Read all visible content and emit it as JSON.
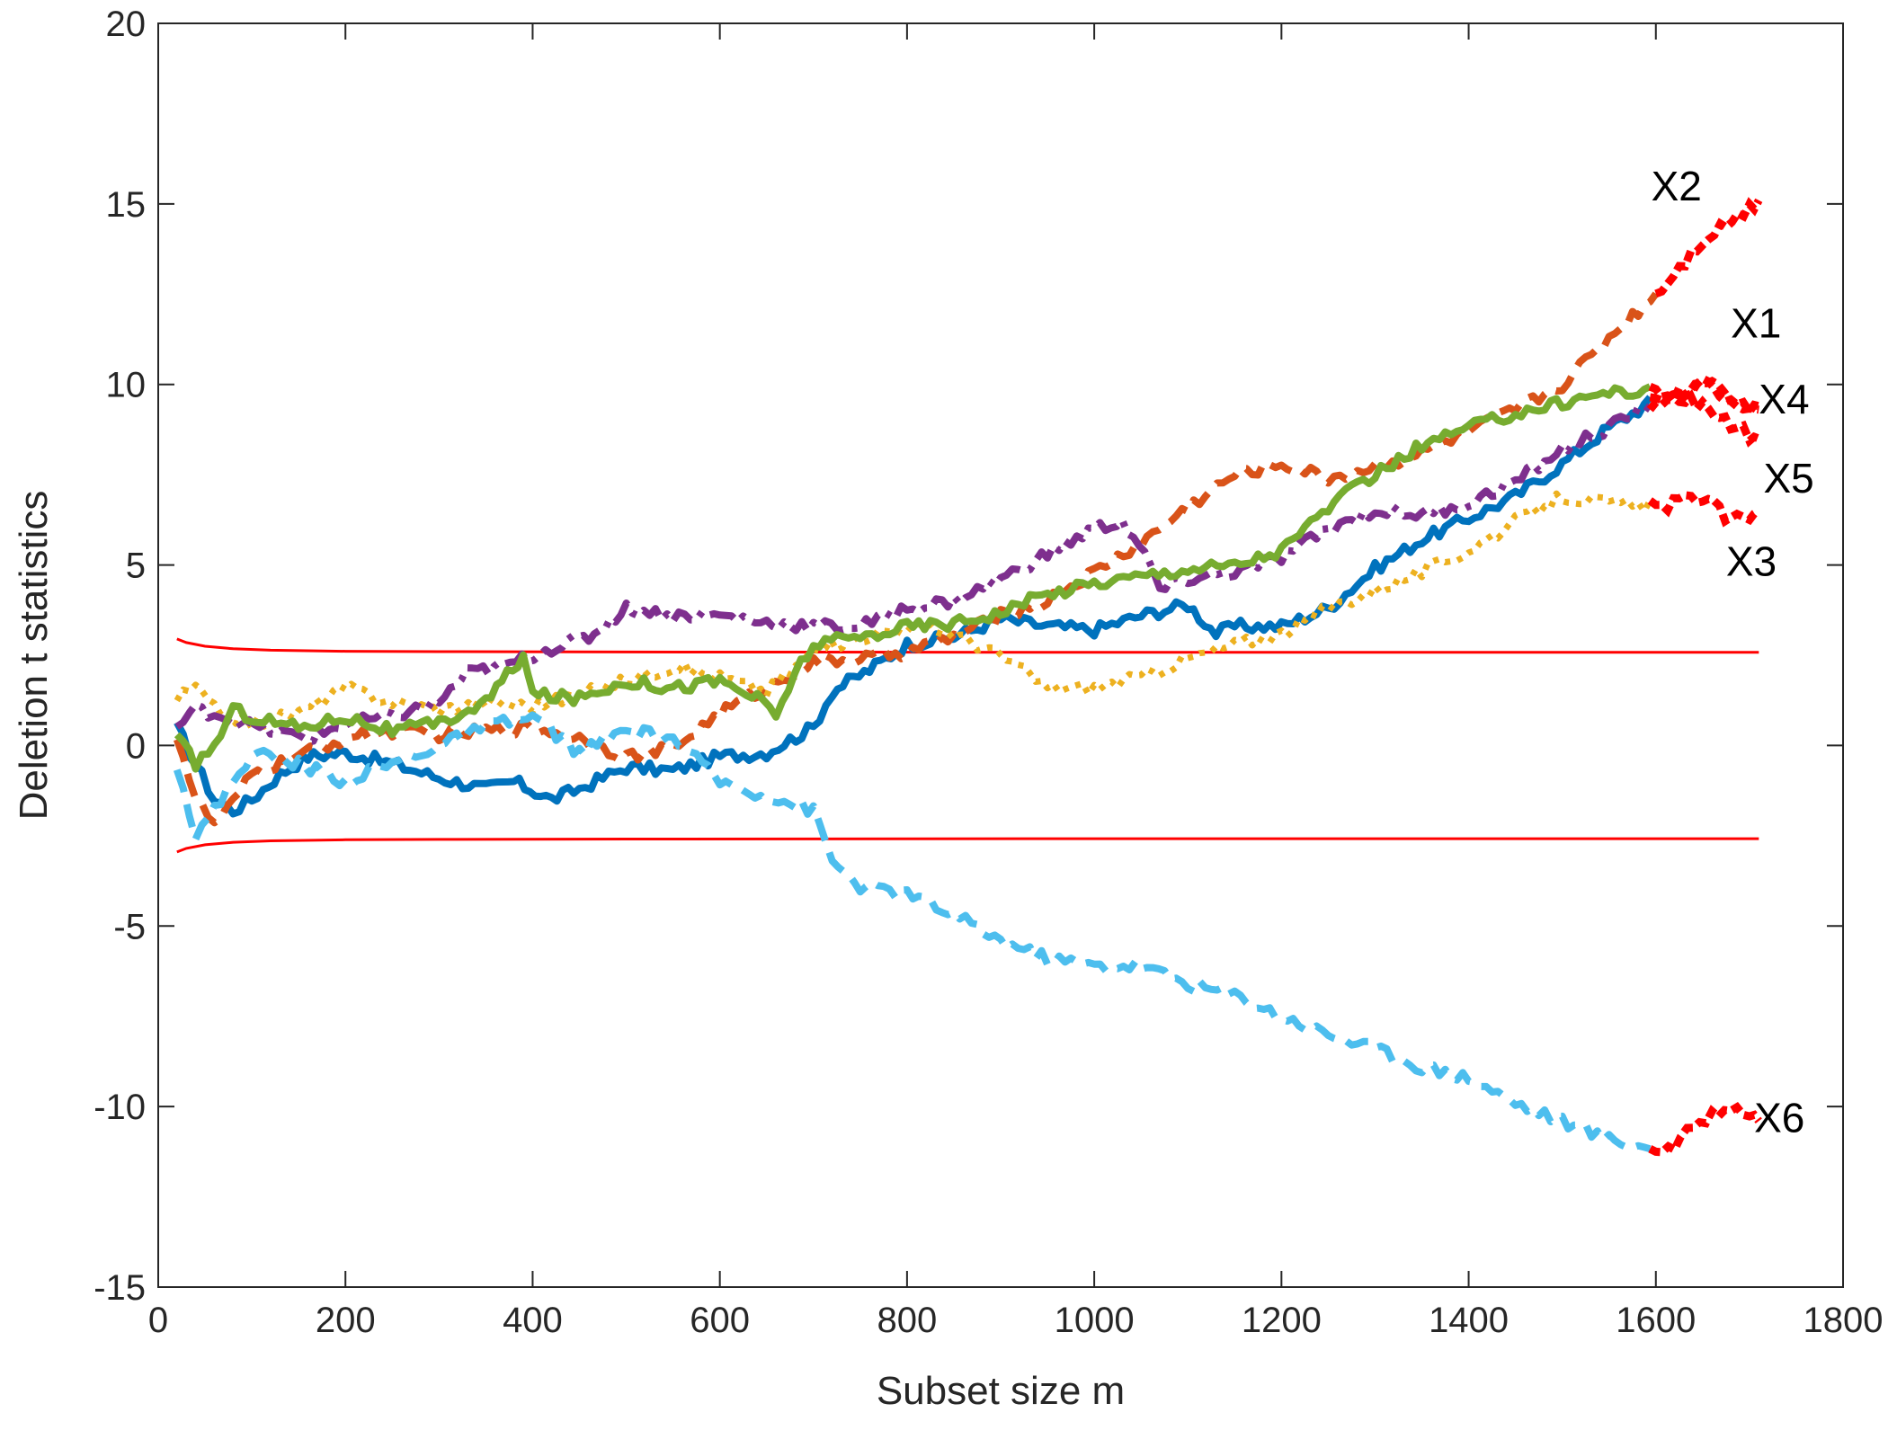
{
  "chart_data": {
    "type": "line",
    "xlabel": "Subset size m",
    "ylabel": "Deletion t statistics",
    "xlim": [
      0,
      1800
    ],
    "ylim": [
      -15,
      20
    ],
    "xticks": [
      0,
      200,
      400,
      600,
      800,
      1000,
      1200,
      1400,
      1600,
      1800
    ],
    "yticks": [
      -15,
      -10,
      -5,
      0,
      5,
      10,
      15,
      20
    ],
    "xtick_labels": [
      "0",
      "200",
      "400",
      "600",
      "800",
      "1000",
      "1200",
      "1400",
      "1600",
      "1800"
    ],
    "ytick_labels": [
      "-15",
      "-10",
      "-5",
      "0",
      "5",
      "10",
      "15",
      "20"
    ],
    "grid": false,
    "box": true,
    "highlight_color": "#ff0000",
    "series": [
      {
        "name": "X1",
        "color": "#0072bd",
        "style": "solid",
        "x": [
          20,
          40,
          60,
          80,
          100,
          130,
          160,
          200,
          250,
          300,
          350,
          380,
          420,
          450,
          500,
          550,
          600,
          650,
          700,
          720,
          760,
          800,
          850,
          900,
          950,
          1000,
          1050,
          1100,
          1130,
          1150,
          1200,
          1250,
          1300,
          1350,
          1400,
          1450,
          1500,
          1550,
          1600,
          1630,
          1660,
          1680,
          1700,
          1710
        ],
        "y": [
          0.5,
          -0.5,
          -1.5,
          -1.8,
          -1.5,
          -0.8,
          -0.3,
          -0.2,
          -0.5,
          -0.9,
          -1.2,
          -1.0,
          -1.5,
          -1.2,
          -0.6,
          -0.7,
          -0.3,
          -0.2,
          0.5,
          1.5,
          2.1,
          2.8,
          3.0,
          3.5,
          3.3,
          3.2,
          3.6,
          3.9,
          3.1,
          3.3,
          3.3,
          3.8,
          4.9,
          5.7,
          6.3,
          6.9,
          7.8,
          8.8,
          9.6,
          9.8,
          10.1,
          9.7,
          9.2,
          9.3
        ]
      },
      {
        "name": "X2",
        "color": "#d95319",
        "style": "dashed",
        "x": [
          20,
          40,
          60,
          80,
          100,
          150,
          200,
          250,
          300,
          350,
          400,
          450,
          500,
          550,
          600,
          650,
          700,
          750,
          800,
          850,
          900,
          950,
          1000,
          1050,
          1100,
          1150,
          1200,
          1250,
          1300,
          1350,
          1400,
          1450,
          1500,
          1550,
          1600,
          1650,
          1700,
          1710
        ],
        "y": [
          0.3,
          -1.5,
          -2.2,
          -1.6,
          -0.8,
          -0.3,
          0.2,
          0.4,
          0.3,
          0.4,
          0.5,
          0.2,
          -0.3,
          -0.1,
          0.9,
          1.6,
          2.3,
          2.4,
          2.6,
          3.0,
          3.6,
          4.0,
          4.8,
          5.6,
          6.6,
          7.5,
          7.8,
          7.4,
          7.7,
          8.1,
          8.7,
          9.3,
          10.0,
          11.3,
          12.5,
          14.0,
          14.9,
          15.1
        ]
      },
      {
        "name": "X3",
        "color": "#edb120",
        "style": "dotted",
        "x": [
          20,
          40,
          60,
          100,
          150,
          200,
          250,
          300,
          350,
          400,
          450,
          500,
          550,
          600,
          650,
          700,
          750,
          800,
          850,
          900,
          950,
          1000,
          1050,
          1100,
          1150,
          1200,
          1250,
          1300,
          1350,
          1400,
          1450,
          1500,
          1550,
          1600,
          1650,
          1680,
          1700,
          1710
        ],
        "y": [
          1.3,
          1.6,
          1.0,
          0.6,
          0.9,
          1.6,
          1.2,
          1.0,
          1.2,
          1.1,
          1.4,
          1.8,
          2.2,
          1.9,
          1.5,
          2.6,
          3.0,
          3.3,
          3.1,
          2.5,
          1.6,
          1.6,
          1.9,
          2.4,
          2.8,
          3.1,
          3.8,
          4.3,
          4.8,
          5.4,
          6.2,
          6.9,
          6.7,
          6.6,
          6.9,
          6.2,
          6.4,
          6.5
        ]
      },
      {
        "name": "X4",
        "color": "#7e2f8e",
        "style": "dashdot",
        "x": [
          20,
          40,
          60,
          80,
          120,
          160,
          200,
          250,
          300,
          330,
          370,
          420,
          460,
          500,
          550,
          600,
          650,
          700,
          750,
          800,
          850,
          900,
          950,
          1000,
          1030,
          1060,
          1070,
          1100,
          1150,
          1200,
          1250,
          1300,
          1350,
          1400,
          1450,
          1500,
          1550,
          1600,
          1650,
          1680,
          1700,
          1710
        ],
        "y": [
          0.5,
          1.0,
          0.9,
          0.7,
          0.4,
          0.2,
          0.6,
          0.8,
          1.2,
          2.0,
          2.2,
          2.7,
          3.0,
          3.8,
          3.6,
          3.6,
          3.4,
          3.3,
          3.3,
          3.8,
          4.0,
          4.6,
          5.3,
          6.0,
          6.2,
          5.0,
          4.3,
          4.6,
          4.8,
          5.2,
          6.0,
          6.5,
          6.4,
          6.7,
          7.3,
          8.2,
          8.8,
          9.5,
          10.0,
          9.6,
          9.3,
          9.4
        ]
      },
      {
        "name": "X5",
        "color": "#77ac30",
        "style": "solid",
        "x": [
          20,
          40,
          60,
          80,
          100,
          150,
          200,
          250,
          300,
          350,
          390,
          400,
          450,
          500,
          550,
          600,
          640,
          660,
          680,
          700,
          750,
          800,
          850,
          900,
          950,
          1000,
          1050,
          1100,
          1150,
          1200,
          1250,
          1300,
          1350,
          1400,
          1450,
          1500,
          1550,
          1600,
          1650,
          1680,
          1700,
          1710
        ],
        "y": [
          0.2,
          -0.5,
          0.0,
          1.0,
          0.8,
          0.5,
          0.8,
          0.4,
          0.6,
          1.2,
          2.5,
          1.4,
          1.3,
          1.8,
          1.6,
          1.8,
          1.3,
          0.8,
          2.0,
          2.8,
          3.0,
          3.3,
          3.4,
          3.7,
          4.2,
          4.5,
          4.7,
          4.9,
          5.0,
          5.4,
          6.6,
          7.5,
          8.3,
          8.8,
          9.2,
          9.5,
          9.8,
          9.8,
          9.4,
          8.9,
          8.6,
          8.5
        ]
      },
      {
        "name": "X6",
        "color": "#4dbeee",
        "style": "dashed",
        "x": [
          20,
          40,
          60,
          80,
          100,
          150,
          200,
          250,
          300,
          350,
          400,
          450,
          500,
          550,
          600,
          650,
          700,
          720,
          750,
          800,
          850,
          900,
          950,
          1000,
          1050,
          1100,
          1150,
          1200,
          1250,
          1300,
          1350,
          1400,
          1450,
          1500,
          1550,
          1600,
          1620,
          1640,
          1660,
          1680,
          1700,
          1710
        ],
        "y": [
          -0.5,
          -2.5,
          -1.8,
          -1.0,
          -0.2,
          -0.5,
          -1.0,
          -0.5,
          0.0,
          0.5,
          0.8,
          -0.2,
          0.4,
          0.2,
          -1.0,
          -1.4,
          -1.8,
          -3.2,
          -3.9,
          -4.1,
          -4.7,
          -5.4,
          -5.9,
          -6.1,
          -6.1,
          -6.6,
          -6.9,
          -7.5,
          -8.0,
          -8.4,
          -8.9,
          -9.2,
          -9.9,
          -10.4,
          -10.9,
          -11.2,
          -11.1,
          -10.6,
          -10.2,
          -10.0,
          -10.2,
          -10.4
        ]
      }
    ],
    "envelopes": [
      {
        "color": "#ff0000",
        "x": [
          20,
          30,
          50,
          80,
          120,
          200,
          300,
          500,
          1000,
          1710
        ],
        "y": [
          2.95,
          2.85,
          2.75,
          2.68,
          2.64,
          2.61,
          2.6,
          2.59,
          2.58,
          2.58
        ]
      },
      {
        "color": "#ff0000",
        "x": [
          20,
          30,
          50,
          80,
          120,
          200,
          300,
          500,
          1000,
          1710
        ],
        "y": [
          -2.95,
          -2.85,
          -2.75,
          -2.68,
          -2.64,
          -2.61,
          -2.6,
          -2.59,
          -2.58,
          -2.58
        ]
      }
    ],
    "annotations": [
      {
        "text": "X2",
        "x": 1595,
        "y": 15.1
      },
      {
        "text": "X1",
        "x": 1680,
        "y": 11.3
      },
      {
        "text": "X4",
        "x": 1710,
        "y": 9.2
      },
      {
        "text": "X5",
        "x": 1715,
        "y": 7.0
      },
      {
        "text": "X3",
        "x": 1675,
        "y": 4.7
      },
      {
        "text": "X6",
        "x": 1705,
        "y": -10.7
      }
    ]
  }
}
